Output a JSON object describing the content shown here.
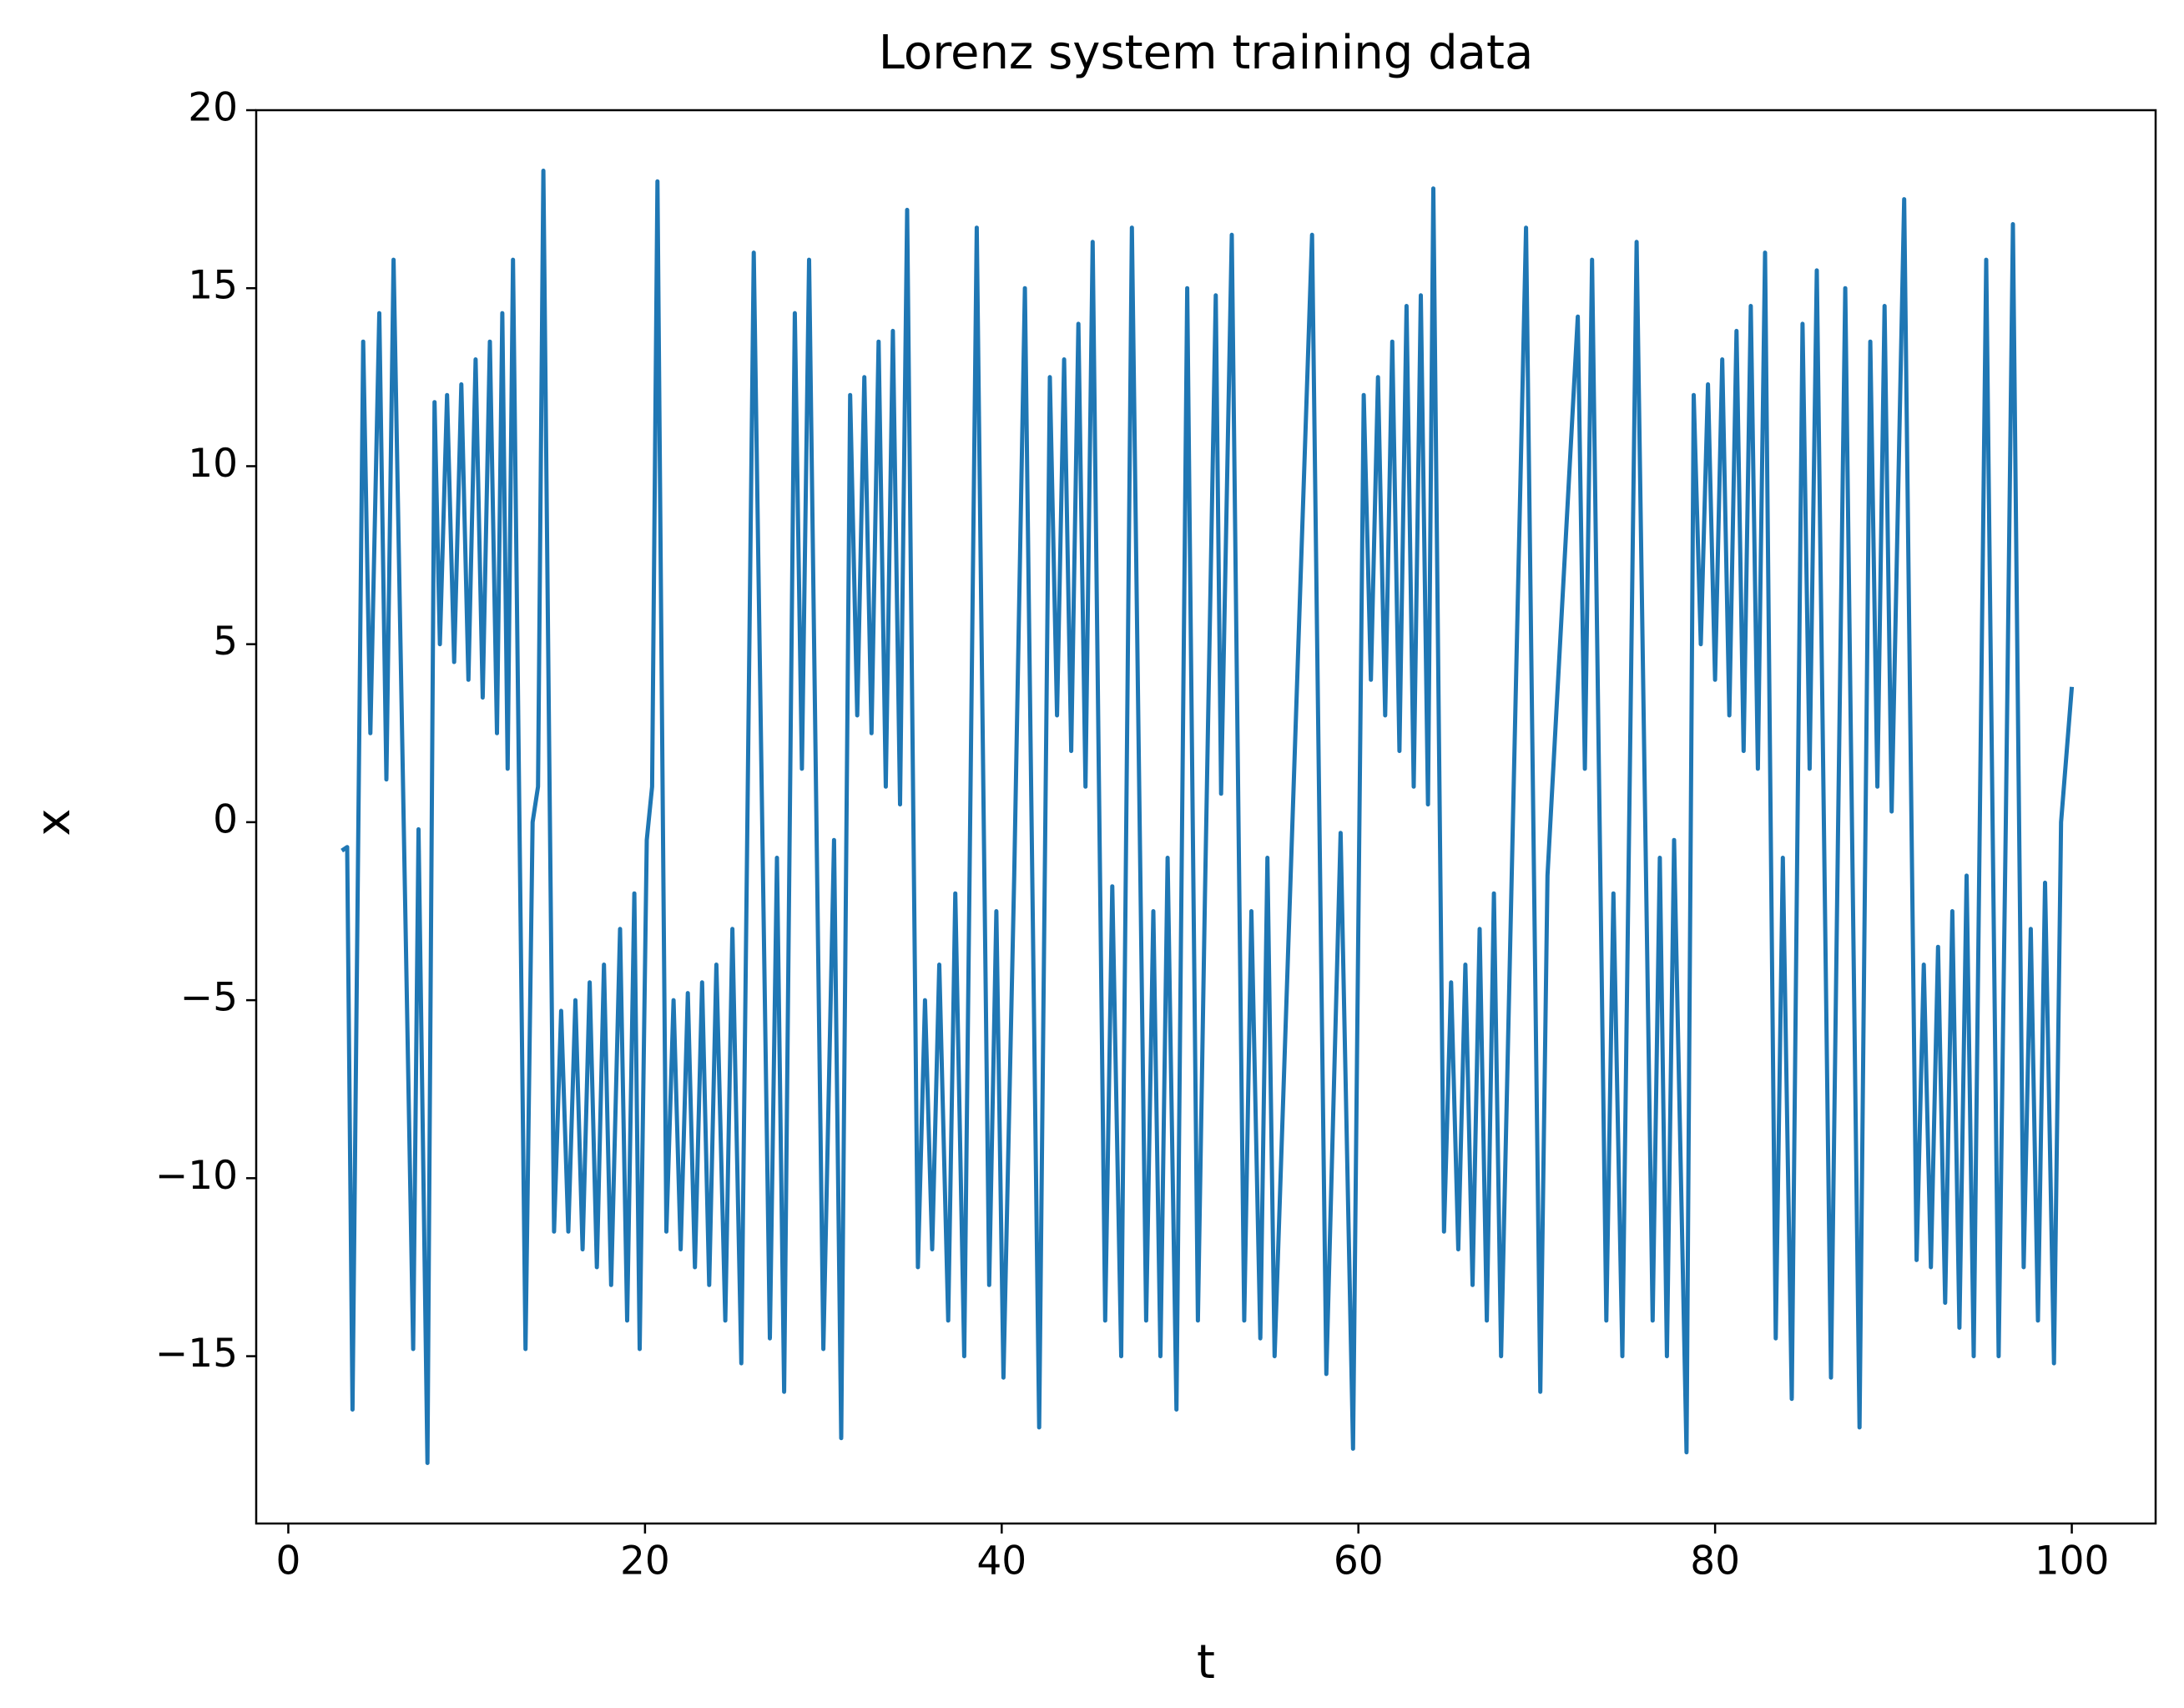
{
  "chart_data": {
    "type": "line",
    "title": "Lorenz system training data",
    "x_label": "t",
    "y_label": "x",
    "color": "#1f77b4",
    "x": [
      3.0,
      3.3,
      3.6,
      4.2,
      4.6,
      5.1,
      5.5,
      5.9,
      7.0,
      7.3,
      7.8,
      8.2,
      8.5,
      8.9,
      9.3,
      9.7,
      10.1,
      10.5,
      10.9,
      11.3,
      11.7,
      12.0,
      12.3,
      12.6,
      13.3,
      13.7,
      14.0,
      14.3,
      14.9,
      15.3,
      15.7,
      16.1,
      16.5,
      16.9,
      17.3,
      17.7,
      18.1,
      18.6,
      19.0,
      19.4,
      19.7,
      20.1,
      20.4,
      20.7,
      21.2,
      21.6,
      22.0,
      22.4,
      22.8,
      23.2,
      23.6,
      24.0,
      24.5,
      24.9,
      25.4,
      26.1,
      27.0,
      27.4,
      27.8,
      28.4,
      28.8,
      29.2,
      30.0,
      30.6,
      31.0,
      31.5,
      31.9,
      32.3,
      32.7,
      33.1,
      33.5,
      33.9,
      34.3,
      34.7,
      35.3,
      35.7,
      36.1,
      36.5,
      37.0,
      37.4,
      37.9,
      38.6,
      39.3,
      39.7,
      40.1,
      40.7,
      41.3,
      42.1,
      42.7,
      43.1,
      43.5,
      43.9,
      44.3,
      44.7,
      45.1,
      45.8,
      46.2,
      46.7,
      47.3,
      48.1,
      48.5,
      48.9,
      49.3,
      49.8,
      50.4,
      51.0,
      51.4,
      52.0,
      52.3,
      52.9,
      53.6,
      54.0,
      54.5,
      54.9,
      55.3,
      57.4,
      58.2,
      59.0,
      59.7,
      60.3,
      60.7,
      61.1,
      61.5,
      61.9,
      62.3,
      62.7,
      63.1,
      63.5,
      63.9,
      64.2,
      64.8,
      65.2,
      65.6,
      66.0,
      66.4,
      66.8,
      67.2,
      67.6,
      68.0,
      69.4,
      70.2,
      70.6,
      72.3,
      72.7,
      73.1,
      73.9,
      74.3,
      74.8,
      75.6,
      76.5,
      76.9,
      77.3,
      77.7,
      78.4,
      78.8,
      79.2,
      79.6,
      80.0,
      80.4,
      80.8,
      81.2,
      81.6,
      82.0,
      82.4,
      82.8,
      83.4,
      83.8,
      84.3,
      84.9,
      85.3,
      85.7,
      86.5,
      86.9,
      87.3,
      88.1,
      88.7,
      89.1,
      89.5,
      89.9,
      90.6,
      91.3,
      91.7,
      92.1,
      92.5,
      92.9,
      93.3,
      93.7,
      94.1,
      94.5,
      95.2,
      95.9,
      96.3,
      96.7,
      97.3,
      97.7,
      98.1,
      98.5,
      99.0,
      99.4,
      100.0
    ],
    "values": [
      -0.8,
      -0.7,
      -16.5,
      13.5,
      2.5,
      14.3,
      1.2,
      15.8,
      -14.8,
      -0.2,
      -18,
      11.8,
      5,
      12,
      4.5,
      12.3,
      4,
      13,
      3.5,
      13.5,
      2.5,
      14.3,
      1.5,
      15.8,
      -14.8,
      0,
      1,
      18.3,
      -11.5,
      -5.3,
      -11.5,
      -5,
      -12,
      -4.5,
      -12.5,
      -4,
      -13,
      -3,
      -14,
      -2,
      -14.8,
      -0.5,
      1,
      18,
      -11.5,
      -5,
      -12,
      -4.8,
      -12.5,
      -4.5,
      -13,
      -4,
      -14,
      -3,
      -15.2,
      16,
      -14.5,
      -1,
      -16,
      14.3,
      1.5,
      15.8,
      -14.8,
      -0.5,
      -17.3,
      12,
      3,
      12.5,
      2.5,
      13.5,
      1,
      13.8,
      0.5,
      17.2,
      -12.5,
      -5,
      -12,
      -4,
      -14,
      -2,
      -15,
      16.7,
      -13,
      -2.5,
      -15.6,
      -1.5,
      15,
      -17,
      12.5,
      3,
      13,
      2,
      14,
      1,
      16.3,
      -14,
      -1.8,
      -15,
      16.7,
      -14,
      -2.5,
      -15,
      -1,
      -16.5,
      15,
      -14,
      -2,
      14.8,
      0.8,
      16.5,
      -14,
      -2.5,
      -14.5,
      -1,
      -15,
      16.5,
      -15.5,
      -0.3,
      -17.6,
      12,
      4,
      12.5,
      3,
      13.5,
      2,
      14.5,
      1,
      14.8,
      0.5,
      17.8,
      -11.5,
      -4.5,
      -12,
      -4,
      -13,
      -3,
      -14,
      -2,
      -15,
      16.7,
      -16,
      -1.5,
      14.2,
      1.5,
      15.8,
      -14,
      -2,
      -15,
      16.3,
      -14,
      -1,
      -15,
      -0.5,
      -17.7,
      12,
      5,
      12.3,
      4,
      13,
      3,
      13.8,
      2,
      14.5,
      1.5,
      16,
      -14.5,
      -1,
      -16.2,
      14,
      1.5,
      15.5,
      -15.6,
      0,
      15,
      -17,
      13.5,
      1,
      14.5,
      0.3,
      17.5,
      -12.3,
      -4,
      -12.5,
      -3.5,
      -13.5,
      -2.5,
      -14.2,
      -1.5,
      -15,
      15.8,
      -15,
      0,
      16.8,
      -12.5,
      -3,
      -14,
      -1.7,
      -15.2,
      0,
      3.8
    ],
    "xlim": [
      -1.8,
      104.7
    ],
    "ylim": [
      -19.7,
      20
    ],
    "xticks": [
      0,
      20,
      40,
      60,
      80,
      100
    ],
    "yticks": [
      {
        "value": -15,
        "label": "−15"
      },
      {
        "value": -10,
        "label": "−10"
      },
      {
        "value": -5,
        "label": "−5"
      },
      0,
      5,
      10,
      15,
      20
    ]
  }
}
